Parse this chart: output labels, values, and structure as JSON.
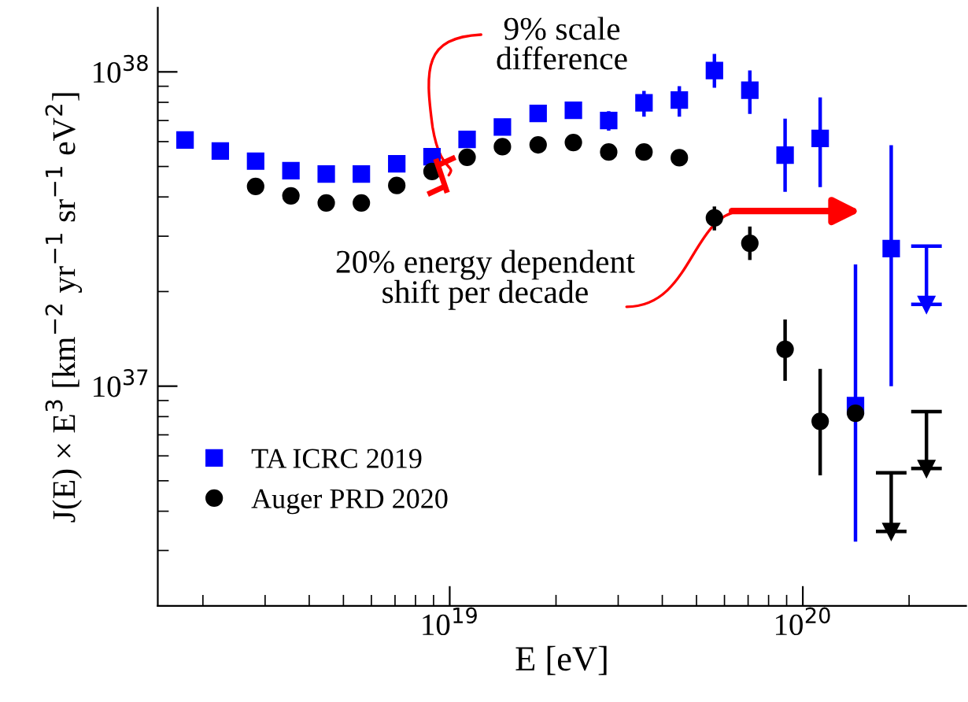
{
  "chart_data": {
    "type": "scatter",
    "xlabel": "E [eV]",
    "ylabel": "J(E) × E$^{3}$ [km$^{−2}$ yr$^{−1}$ sr$^{−1}$ eV$^{2}$]",
    "log": "xy",
    "xlim": [
      1.49e+18,
      2.9e+20
    ],
    "xticks": [
      {
        "value": 1e+19,
        "label": "10$^{19}$"
      },
      {
        "value": 1e+20,
        "label": "10$^{20}$"
      }
    ],
    "ylim": [
      2e+36,
      1.6e+38
    ],
    "yticks": [
      {
        "value": 1e+37,
        "label": "10$^{37}$"
      },
      {
        "value": 1e+38,
        "label": "10$^{38}$"
      }
    ],
    "grid": false,
    "legend": "bottom left",
    "annotations": [
      "9% scale\ndifference",
      "20% energy dependent\nshift per decade"
    ],
    "series": [
      {
        "name": "TA ICRC 2019",
        "color": "#0000ff",
        "marker": "square",
        "x": [
          1.78e+18,
          2.24e+18,
          2.82e+18,
          3.55e+18,
          4.47e+18,
          5.62e+18,
          7.08e+18,
          8.91e+18,
          1.12e+19,
          1.41e+19,
          1.78e+19,
          2.24e+19,
          2.82e+19,
          3.55e+19,
          4.47e+19,
          5.62e+19,
          7.08e+19,
          8.91e+19,
          1.12e+20,
          1.41e+20,
          1.78e+20
        ],
        "values": [
          6.07e+37,
          5.6e+37,
          5.2e+37,
          4.85e+37,
          4.73e+37,
          4.73e+37,
          5.1e+37,
          5.37e+37,
          6.1e+37,
          6.68e+37,
          7.38e+37,
          7.55e+37,
          7e+37,
          7.97e+37,
          8.13e+37,
          1.01e+38,
          8.74e+37,
          5.43e+37,
          6.14e+37,
          8.67e+36,
          2.74e+37
        ],
        "errors": [
          null,
          null,
          null,
          null,
          null,
          null,
          null,
          null,
          null,
          null,
          null,
          null,
          [
            6.5e+37,
            7.5e+37
          ],
          [
            7.2e+37,
            8.7e+37
          ],
          [
            7.2e+37,
            9e+37
          ],
          [
            8.9e+37,
            1.14e+38
          ],
          [
            7.35e+37,
            1.01e+38
          ],
          [
            4.15e+37,
            7.1e+37
          ],
          [
            4.3e+37,
            8.3e+37
          ],
          [
            3.2e+36,
            2.44e+37
          ],
          [
            1e+37,
            5.84e+37
          ]
        ]
      },
      {
        "name": "Auger PRD 2020",
        "color": "#000000",
        "marker": "circle",
        "x": [
          2.82e+18,
          3.55e+18,
          4.47e+18,
          5.62e+18,
          7.08e+18,
          8.91e+18,
          1.12e+19,
          1.41e+19,
          1.78e+19,
          2.24e+19,
          2.82e+19,
          3.55e+19,
          4.47e+19,
          5.62e+19,
          7.08e+19,
          8.91e+19,
          1.12e+20,
          1.41e+20
        ],
        "values": [
          4.32e+37,
          4.03e+37,
          3.83e+37,
          3.83e+37,
          4.35e+37,
          4.82e+37,
          5.35e+37,
          5.78e+37,
          5.86e+37,
          5.96e+37,
          5.56e+37,
          5.56e+37,
          5.33e+37,
          3.43e+37,
          2.85e+37,
          1.31e+37,
          7.73e+36,
          8.2e+36
        ],
        "errors": [
          null,
          null,
          null,
          null,
          null,
          null,
          null,
          null,
          null,
          null,
          null,
          null,
          null,
          [
            3.13e+37,
            3.73e+37
          ],
          [
            2.52e+37,
            3.22e+37
          ],
          [
            1.04e+37,
            1.63e+37
          ],
          [
            5.2e+36,
            1.135e+37
          ],
          null
        ]
      },
      {
        "color": "#0000ff",
        "marker": "triangle",
        "x": [
          2.24e+20
        ],
        "values": [
          1.82e+37
        ],
        "errors": [
          [
            1.82e+37,
            2.79e+37
          ]
        ]
      },
      {
        "color": "#000000",
        "marker": "triangle",
        "x": [
          1.78e+20,
          2.24e+20
        ],
        "values": [
          3.45e+36,
          5.47e+36
        ],
        "errors": [
          [
            3.45e+36,
            5.3e+36
          ],
          [
            5.47e+36,
            8.3e+36
          ]
        ]
      }
    ]
  }
}
